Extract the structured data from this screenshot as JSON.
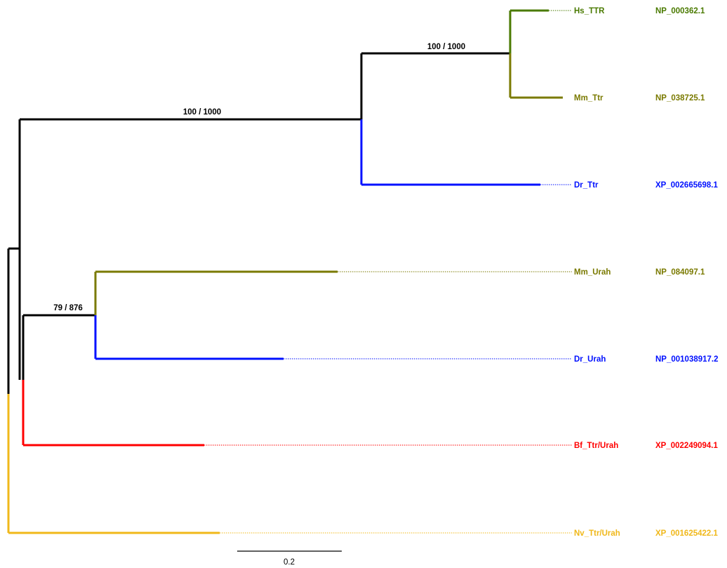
{
  "colors": {
    "green": "#4a7a00",
    "olive": "#7a7a00",
    "blue": "#0010ff",
    "red": "#ff0000",
    "gold": "#f0b81a",
    "black": "#000000"
  },
  "tree": {
    "supports": [
      {
        "id": "ttr-clade",
        "label": "100 / 1000"
      },
      {
        "id": "ttr-vertebrate",
        "label": "100 / 1000"
      },
      {
        "id": "urah-clade",
        "label": "79 / 876"
      }
    ],
    "leaves": [
      {
        "id": "hs-ttr",
        "taxon": "Hs_TTR",
        "accession": "NP_000362.1",
        "color": "green"
      },
      {
        "id": "mm-ttr",
        "taxon": "Mm_Ttr",
        "accession": "NP_038725.1",
        "color": "olive"
      },
      {
        "id": "dr-ttr",
        "taxon": "Dr_Ttr",
        "accession": "XP_002665698.1",
        "color": "blue"
      },
      {
        "id": "mm-urah",
        "taxon": "Mm_Urah",
        "accession": "NP_084097.1",
        "color": "olive"
      },
      {
        "id": "dr-urah",
        "taxon": "Dr_Urah",
        "accession": "NP_001038917.2",
        "color": "blue"
      },
      {
        "id": "bf-ttr-urah",
        "taxon": "Bf_Ttr/Urah",
        "accession": "XP_002249094.1",
        "color": "red"
      },
      {
        "id": "nv-ttr-urah",
        "taxon": "Nv_Ttr/Urah",
        "accession": "XP_001625422.1",
        "color": "gold"
      }
    ],
    "scale_bar": {
      "label": "0.2",
      "length": 0.2
    }
  }
}
